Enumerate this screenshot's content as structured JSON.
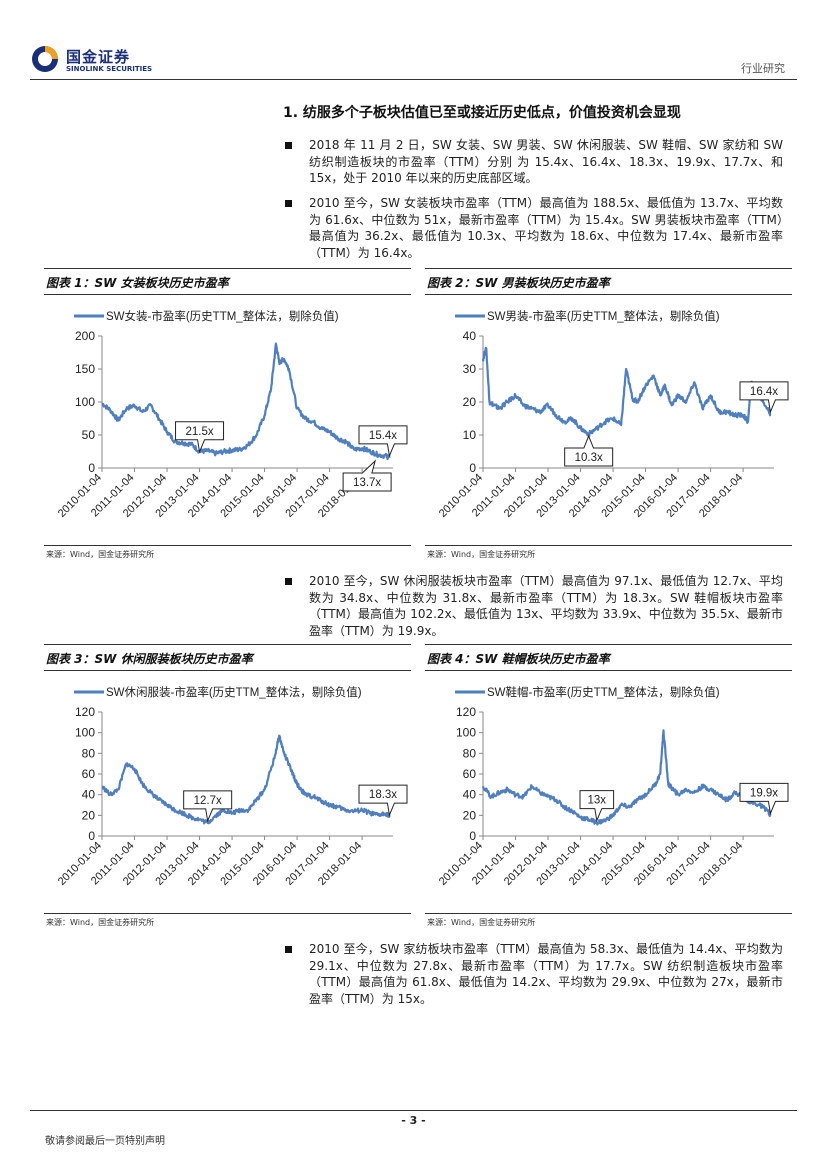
{
  "header": {
    "logo_cn": "国金证券",
    "logo_en": "SINOLINK SECURITIES",
    "doc_type": "行业研究"
  },
  "section": {
    "title": "1. 纺服多个子板块估值已至或接近历史低点，价值投资机会显现"
  },
  "bullets": [
    "2018 年 11 月 2 日，SW 女装、SW 男装、SW 休闲服装、SW 鞋帽、SW 家纺和 SW 纺织制造板块的市盈率（TTM）分别 为 15.4x、16.4x、18.3x、19.9x、17.7x、和 15x，处于 2010 年以来的历史底部区域。",
    "2010 至今，SW 女装板块市盈率（TTM）最高值为 188.5x、最低值为 13.7x、平均数为 61.6x、中位数为 51x，最新市盈率（TTM）为 15.4x。SW 男装板块市盈率（TTM）最高值为 36.2x、最低值为 10.3x、平均数为 18.6x、中位数为 17.4x、最新市盈率（TTM）为 16.4x。",
    "2010 至今，SW 休闲服装板块市盈率（TTM）最高值为 97.1x、最低值为 12.7x、平均数为 34.8x、中位数为 31.8x、最新市盈率（TTM）为 18.3x。SW 鞋帽板块市盈率（TTM）最高值为 102.2x、最低值为 13x、平均数为 33.9x、中位数为 35.5x、最新市盈率（TTM）为 19.9x。",
    "2010 至今，SW 家纺板块市盈率（TTM）最高值为 58.3x、最低值为 14.4x、平均数为 29.1x、中位数为 27.8x、最新市盈率（TTM）为 17.7x。SW 纺织制造板块市盈率（TTM）最高值为 61.8x、最低值为 14.2x、平均数为 29.9x、中位数为 27x，最新市盈率（TTM）为 15x。"
  ],
  "figures": [
    {
      "caption": "图表 1：SW 女装板块历史市盈率",
      "source": "来源：Wind，国金证券研究所"
    },
    {
      "caption": "图表 2：SW 男装板块历史市盈率",
      "source": "来源：Wind，国金证券研究所"
    },
    {
      "caption": "图表 3：SW 休闲服装板块历史市盈率",
      "source": "来源：Wind，国金证券研究所"
    },
    {
      "caption": "图表 4：SW 鞋帽板块历史市盈率",
      "source": "来源：Wind，国金证券研究所"
    }
  ],
  "footer": {
    "page": "- 3 -",
    "note": "敬请参阅最后一页特别声明"
  },
  "colors": {
    "line": "#4f7fbf",
    "brand": "#1a2f7a"
  },
  "chart_data": [
    {
      "type": "line",
      "title": "",
      "legend": "SW女装-市盈率(历史TTM_整体法，剔除负值)",
      "xlabel": "",
      "ylabel": "",
      "ylim": [
        0,
        200
      ],
      "yticks": [
        0,
        50,
        100,
        150,
        200
      ],
      "xtick_labels": [
        "2010-01-04",
        "2011-01-04",
        "2012-01-04",
        "2013-01-04",
        "2014-01-04",
        "2015-01-04",
        "2016-01-04",
        "2017-01-04",
        "2018-01-04"
      ],
      "x": [
        2010.0,
        2010.25,
        2010.5,
        2010.75,
        2011.0,
        2011.25,
        2011.5,
        2011.75,
        2012.0,
        2012.25,
        2012.5,
        2012.75,
        2013.0,
        2013.25,
        2013.5,
        2013.75,
        2014.0,
        2014.25,
        2014.5,
        2014.75,
        2015.0,
        2015.2,
        2015.35,
        2015.45,
        2015.6,
        2015.75,
        2016.0,
        2016.25,
        2016.5,
        2016.75,
        2017.0,
        2017.25,
        2017.5,
        2017.75,
        2018.0,
        2018.25,
        2018.5,
        2018.75,
        2018.84
      ],
      "values": [
        98,
        88,
        72,
        90,
        95,
        85,
        95,
        75,
        55,
        40,
        38,
        36,
        25,
        26,
        22,
        25,
        27,
        28,
        35,
        50,
        80,
        120,
        188.5,
        160,
        165,
        150,
        90,
        75,
        70,
        60,
        55,
        45,
        40,
        28,
        30,
        25,
        20,
        18,
        15.4
      ],
      "annotations": [
        {
          "label": "21.5x",
          "x": 2013.0,
          "y": 21.5
        },
        {
          "label": "15.4x",
          "x": 2018.84,
          "y": 15.4
        },
        {
          "label": "13.7x",
          "x": 2018.4,
          "y": 13.7
        }
      ]
    },
    {
      "type": "line",
      "title": "",
      "legend": "SW男装-市盈率(历史TTM_整体法，剔除负值)",
      "xlabel": "",
      "ylabel": "",
      "ylim": [
        0,
        40
      ],
      "yticks": [
        0,
        10,
        20,
        30,
        40
      ],
      "xtick_labels": [
        "2010-01-04",
        "2011-01-04",
        "2012-01-04",
        "2013-01-04",
        "2014-01-04",
        "2015-01-04",
        "2016-01-04",
        "2017-01-04",
        "2018-01-04"
      ],
      "x": [
        2010.0,
        2010.1,
        2010.2,
        2010.35,
        2010.5,
        2010.75,
        2011.0,
        2011.25,
        2011.5,
        2011.75,
        2012.0,
        2012.25,
        2012.5,
        2012.75,
        2013.0,
        2013.25,
        2013.5,
        2013.75,
        2014.0,
        2014.25,
        2014.4,
        2014.6,
        2014.75,
        2015.0,
        2015.25,
        2015.45,
        2015.6,
        2015.8,
        2016.0,
        2016.25,
        2016.5,
        2016.75,
        2017.0,
        2017.25,
        2017.5,
        2017.75,
        2018.0,
        2018.15,
        2018.25,
        2018.5,
        2018.75,
        2018.84
      ],
      "values": [
        33,
        36.2,
        20,
        19,
        18,
        20,
        22,
        19,
        18,
        17,
        19,
        16,
        14,
        15,
        12,
        10.3,
        12,
        14,
        15,
        13,
        30,
        21,
        20,
        25,
        28,
        22,
        25,
        19,
        22,
        20,
        26,
        18,
        22,
        17,
        17,
        16,
        16,
        14,
        26,
        22,
        18,
        16.4
      ],
      "annotations": [
        {
          "label": "10.3x",
          "x": 2013.25,
          "y": 10.3
        },
        {
          "label": "16.4x",
          "x": 2018.84,
          "y": 16.4
        }
      ]
    },
    {
      "type": "line",
      "title": "",
      "legend": "SW休闲服装-市盈率(历史TTM_整体法，剔除负值)",
      "xlabel": "",
      "ylabel": "",
      "ylim": [
        0,
        120
      ],
      "yticks": [
        0,
        20,
        40,
        60,
        80,
        100,
        120
      ],
      "xtick_labels": [
        "2010-01-04",
        "2011-01-04",
        "2012-01-04",
        "2013-01-04",
        "2014-01-04",
        "2015-01-04",
        "2016-01-04",
        "2017-01-04",
        "2018-01-04"
      ],
      "x": [
        2010.0,
        2010.25,
        2010.5,
        2010.75,
        2011.0,
        2011.25,
        2011.5,
        2011.75,
        2012.0,
        2012.25,
        2012.5,
        2012.75,
        2013.0,
        2013.25,
        2013.5,
        2013.75,
        2014.0,
        2014.25,
        2014.5,
        2014.75,
        2015.0,
        2015.3,
        2015.45,
        2015.6,
        2015.8,
        2016.0,
        2016.25,
        2016.5,
        2016.75,
        2017.0,
        2017.25,
        2017.5,
        2017.75,
        2018.0,
        2018.25,
        2018.5,
        2018.75,
        2018.84
      ],
      "values": [
        48,
        40,
        45,
        70,
        65,
        50,
        42,
        35,
        30,
        25,
        22,
        18,
        16,
        12.7,
        20,
        25,
        22,
        25,
        25,
        35,
        45,
        75,
        97.1,
        80,
        65,
        50,
        40,
        38,
        34,
        30,
        28,
        25,
        24,
        25,
        22,
        20,
        22,
        18.3
      ],
      "annotations": [
        {
          "label": "12.7x",
          "x": 2013.25,
          "y": 12.7
        },
        {
          "label": "18.3x",
          "x": 2018.84,
          "y": 18.3
        }
      ]
    },
    {
      "type": "line",
      "title": "",
      "legend": "SW鞋帽-市盈率(历史TTM_整体法，剔除负值)",
      "xlabel": "",
      "ylabel": "",
      "ylim": [
        0,
        120
      ],
      "yticks": [
        0,
        20,
        40,
        60,
        80,
        100,
        120
      ],
      "xtick_labels": [
        "2010-01-04",
        "2011-01-04",
        "2012-01-04",
        "2013-01-04",
        "2014-01-04",
        "2015-01-04",
        "2016-01-04",
        "2017-01-04",
        "2018-01-04"
      ],
      "x": [
        2010.0,
        2010.25,
        2010.5,
        2010.75,
        2011.0,
        2011.25,
        2011.5,
        2011.75,
        2012.0,
        2012.25,
        2012.5,
        2012.75,
        2013.0,
        2013.25,
        2013.5,
        2013.75,
        2014.0,
        2014.25,
        2014.5,
        2014.75,
        2015.0,
        2015.3,
        2015.45,
        2015.55,
        2015.7,
        2015.85,
        2016.0,
        2016.25,
        2016.5,
        2016.75,
        2017.0,
        2017.25,
        2017.5,
        2017.75,
        2018.0,
        2018.25,
        2018.5,
        2018.75,
        2018.84
      ],
      "values": [
        48,
        38,
        42,
        45,
        40,
        38,
        48,
        42,
        38,
        35,
        28,
        24,
        18,
        16,
        13,
        15,
        20,
        30,
        28,
        35,
        40,
        50,
        60,
        102.2,
        50,
        45,
        40,
        45,
        42,
        48,
        45,
        40,
        35,
        42,
        38,
        32,
        30,
        25,
        19.9
      ],
      "annotations": [
        {
          "label": "13x",
          "x": 2013.5,
          "y": 13
        },
        {
          "label": "19.9x",
          "x": 2018.84,
          "y": 19.9
        }
      ]
    }
  ]
}
